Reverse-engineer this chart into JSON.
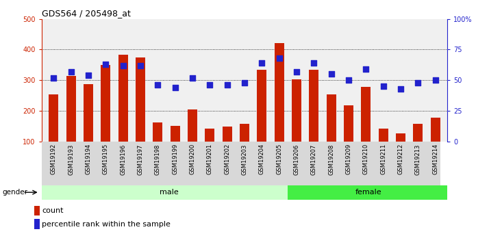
{
  "title": "GDS564 / 205498_at",
  "samples": [
    "GSM19192",
    "GSM19193",
    "GSM19194",
    "GSM19195",
    "GSM19196",
    "GSM19197",
    "GSM19198",
    "GSM19199",
    "GSM19200",
    "GSM19201",
    "GSM19202",
    "GSM19203",
    "GSM19204",
    "GSM19205",
    "GSM19206",
    "GSM19207",
    "GSM19208",
    "GSM19209",
    "GSM19210",
    "GSM19211",
    "GSM19212",
    "GSM19213",
    "GSM19214"
  ],
  "count_values": [
    253,
    315,
    287,
    350,
    383,
    374,
    163,
    152,
    205,
    143,
    150,
    157,
    335,
    422,
    302,
    335,
    253,
    218,
    278,
    143,
    126,
    157,
    177
  ],
  "percentile_values": [
    52,
    57,
    54,
    63,
    62,
    62,
    46,
    44,
    52,
    46,
    46,
    48,
    64,
    68,
    57,
    64,
    55,
    50,
    59,
    45,
    43,
    48,
    50
  ],
  "male_samples": 14,
  "bar_color": "#cc2200",
  "dot_color": "#2222cc",
  "male_bg": "#ccffcc",
  "female_bg": "#44ee44",
  "axis_color_left": "#cc2200",
  "axis_color_right": "#2222cc",
  "ylim_left": [
    100,
    500
  ],
  "yticks_left": [
    100,
    200,
    300,
    400,
    500
  ],
  "ytick_labels_left": [
    "100",
    "200",
    "300",
    "400",
    "500"
  ],
  "yticks_right": [
    0,
    25,
    50,
    75,
    100
  ],
  "ytick_labels_right": [
    "0",
    "25",
    "50",
    "75",
    "100%"
  ],
  "grid_lines": [
    200,
    300,
    400
  ],
  "plot_bg": "#f0f0f0"
}
